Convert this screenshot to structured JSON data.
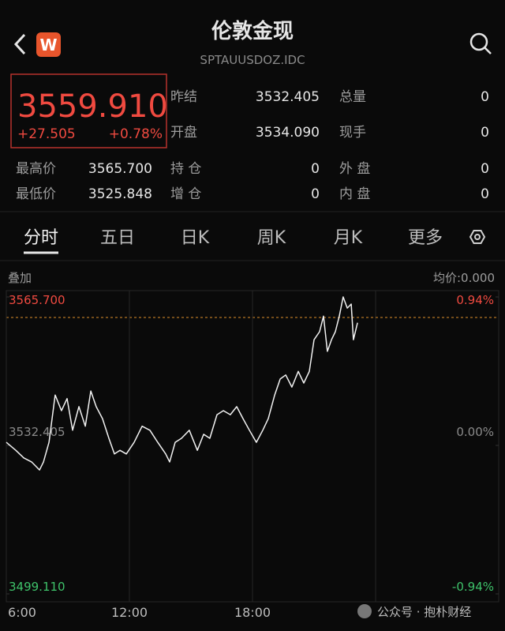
{
  "header": {
    "logo": "W",
    "title": "伦敦金现",
    "subtitle": "SPTAUUSDOZ.IDC"
  },
  "quote": {
    "price": "3559.910",
    "change": "+27.505",
    "change_pct": "+0.78%"
  },
  "fields": [
    {
      "label": "昨结",
      "value": "3532.405"
    },
    {
      "label": "总量",
      "value": "0"
    },
    {
      "label": "开盘",
      "value": "3534.090"
    },
    {
      "label": "现手",
      "value": "0"
    },
    {
      "label": "最高价",
      "value": "3565.700"
    },
    {
      "label": "持 仓",
      "value": "0"
    },
    {
      "label": "外 盘",
      "value": "0"
    },
    {
      "label": "最低价",
      "value": "3525.848"
    },
    {
      "label": "增 仓",
      "value": "0"
    },
    {
      "label": "内 盘",
      "value": "0"
    }
  ],
  "tabs": [
    "分时",
    "五日",
    "日K",
    "周K",
    "月K",
    "更多"
  ],
  "chart_header": {
    "overlay": "叠加",
    "average": "均价:0.000"
  },
  "chart_data": {
    "type": "line",
    "color": "#f2f2f2",
    "x": [
      6.0,
      6.46,
      6.85,
      7.23,
      7.62,
      7.81,
      8.08,
      8.38,
      8.69,
      8.96,
      9.23,
      9.54,
      9.85,
      10.12,
      10.38,
      10.69,
      11.0,
      11.27,
      11.54,
      11.85,
      12.23,
      12.62,
      13.0,
      13.38,
      13.77,
      13.96,
      14.23,
      14.54,
      14.92,
      15.31,
      15.62,
      15.92,
      16.27,
      16.58,
      16.92,
      17.23,
      17.54,
      17.85,
      18.19,
      18.5,
      18.77,
      19.08,
      19.35,
      19.62,
      19.92,
      20.23,
      20.5,
      20.77,
      21.0,
      21.27,
      21.46,
      21.65,
      21.85,
      22.04,
      22.23,
      22.42,
      22.62,
      22.81,
      22.92,
      23.12
    ],
    "values": [
      3533.1,
      3531.3,
      3529.6,
      3528.7,
      3526.9,
      3528.7,
      3533.1,
      3543.7,
      3540.2,
      3542.9,
      3535.8,
      3541.1,
      3536.7,
      3544.6,
      3541.1,
      3538.4,
      3534.0,
      3530.5,
      3531.3,
      3530.5,
      3533.1,
      3536.7,
      3535.8,
      3533.1,
      3530.5,
      3528.7,
      3533.1,
      3534.0,
      3535.8,
      3531.3,
      3534.9,
      3534.0,
      3539.3,
      3540.2,
      3539.3,
      3541.1,
      3538.4,
      3535.8,
      3533.1,
      3535.8,
      3538.4,
      3543.7,
      3547.3,
      3548.2,
      3545.5,
      3549.0,
      3546.4,
      3549.0,
      3556.1,
      3557.9,
      3561.4,
      3553.5,
      3556.1,
      3557.9,
      3561.4,
      3565.7,
      3563.2,
      3564.1,
      3556.1,
      3559.9
    ],
    "xlim": [
      6,
      30
    ],
    "xticks": [
      {
        "value": 6,
        "label": "6:00"
      },
      {
        "value": 12,
        "label": "12:00"
      },
      {
        "value": 18,
        "label": "18:00"
      }
    ],
    "ylim": [
      3499.11,
      3565.7
    ],
    "yticks": [
      {
        "value": 3565.7,
        "label": "3565.700"
      },
      {
        "value": 3532.405,
        "label": "3532.405"
      },
      {
        "value": 3499.11,
        "label": "3499.110"
      }
    ],
    "y2lim": [
      -0.94,
      0.94
    ],
    "y2ticks": [
      {
        "value": 0.94,
        "label": "0.94%"
      },
      {
        "value": 0,
        "label": "0.00%"
      },
      {
        "value": -0.94,
        "label": "-0.94%"
      }
    ]
  },
  "watermark": "公众号 · 抱朴财经"
}
